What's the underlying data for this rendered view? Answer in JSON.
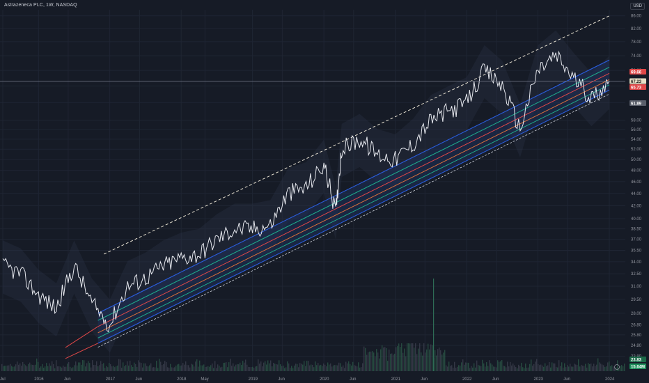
{
  "header": {
    "title": "Astrazeneca PLC, 1W, NASDAQ",
    "currency": "USD"
  },
  "colors": {
    "background": "#161b26",
    "price_line": "#e6e8ee",
    "channel_blue": "#2a5bd7",
    "channel_teal": "#1fa88a",
    "channel_orange": "#d9703a",
    "channel_red": "#e04848",
    "dashed_line": "#e8e2d2",
    "volume": "#3d4150",
    "envelope": "#2a3548"
  },
  "price_labels": [
    {
      "text": "69.66",
      "value": 69.66,
      "bg": "#e04848",
      "fg": "#ffffff"
    },
    {
      "text": "67.23",
      "value": 67.23,
      "bg": "#e8e0c6",
      "fg": "#1a1a1a"
    },
    {
      "text": "65.73",
      "value": 65.73,
      "bg": "#e04848",
      "fg": "#ffffff"
    },
    {
      "text": "61.89",
      "value": 61.89,
      "bg": "#5a5f6b",
      "fg": "#ffffff"
    },
    {
      "text": "23.83",
      "value": 23.83,
      "bg": "#1d6b4a",
      "fg": "#ffffff"
    },
    {
      "text": "15.64M",
      "value": 15.64,
      "bg": "#1d8f5a",
      "fg": "#ffffff"
    }
  ],
  "chart_data": {
    "type": "line",
    "title": "Astrazeneca PLC, 1W, NASDAQ",
    "y_scale": "log",
    "ylim": [
      22.5,
      88.0
    ],
    "y_ticks": [
      "86.00",
      "82.00",
      "78.00",
      "74.00",
      "70.00",
      "66.00",
      "62.00",
      "58.00",
      "56.00",
      "54.00",
      "52.00",
      "50.00",
      "48.00",
      "46.00",
      "44.00",
      "42.00",
      "40.00",
      "38.50",
      "37.00",
      "35.50",
      "34.00",
      "32.50",
      "31.00",
      "29.50",
      "28.00",
      "26.80",
      "25.80",
      "24.80",
      "23.80"
    ],
    "x_ticks": [
      "Jul",
      "2016",
      "Jun",
      "2017",
      "Jun",
      "2018",
      "May",
      "2019",
      "Jun",
      "2020",
      "Jun",
      "2021",
      "Jun",
      "2022",
      "Jun",
      "2023",
      "Jun",
      "2024"
    ],
    "x_tick_dates": [
      "2015-07",
      "2016-01",
      "2016-06",
      "2017-01",
      "2017-06",
      "2018-01",
      "2018-05",
      "2019-01",
      "2019-06",
      "2020-01",
      "2020-06",
      "2021-01",
      "2021-06",
      "2022-01",
      "2022-06",
      "2023-01",
      "2023-06",
      "2024-01"
    ],
    "grid": true,
    "series": [
      {
        "x": [
          "2015-07",
          "2015-10",
          "2016-01",
          "2016-04",
          "2016-07",
          "2016-10",
          "2017-01",
          "2017-04",
          "2017-07",
          "2017-10",
          "2018-01",
          "2018-04",
          "2018-07",
          "2018-10",
          "2019-01",
          "2019-04",
          "2019-07",
          "2019-10",
          "2020-01",
          "2020-03",
          "2020-04",
          "2020-07",
          "2020-10",
          "2021-01",
          "2021-04",
          "2021-07",
          "2021-10",
          "2022-01",
          "2022-04",
          "2022-07",
          "2022-10",
          "2023-01",
          "2023-04",
          "2023-07",
          "2023-10",
          "2024-01"
        ],
        "values": [
          33.5,
          32.5,
          30.0,
          28.5,
          33.5,
          29.0,
          26.8,
          31.0,
          32.0,
          33.5,
          34.5,
          35.0,
          37.0,
          38.5,
          38.5,
          39.0,
          44.0,
          45.0,
          49.0,
          41.0,
          52.0,
          54.0,
          51.0,
          50.0,
          53.0,
          58.0,
          60.0,
          62.0,
          70.0,
          66.0,
          56.0,
          70.0,
          74.0,
          68.0,
          63.0,
          67.23
        ]
      }
    ]
  }
}
